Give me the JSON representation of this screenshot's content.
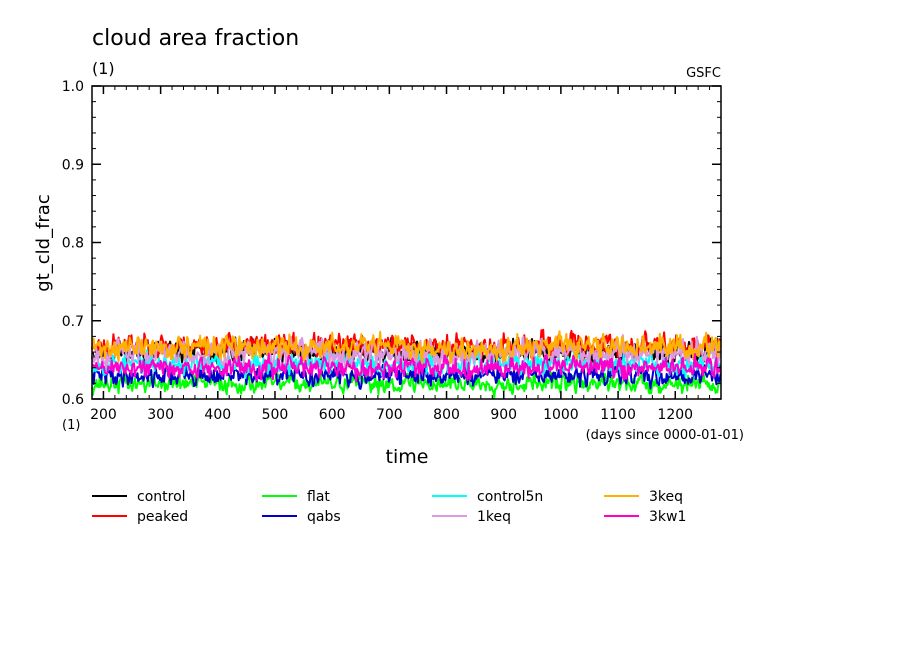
{
  "chart_data": {
    "type": "line",
    "title": "cloud area fraction",
    "subtitle": "(1)",
    "source_label": "GSFC",
    "xlabel": "time",
    "xunits": "(days since 0000-01-01)",
    "ylabel": "gt_cld_frac",
    "yunits": "(1)",
    "xlim": [
      180,
      1280
    ],
    "ylim": [
      0.6,
      1.0
    ],
    "xticks": [
      200,
      300,
      400,
      500,
      600,
      700,
      800,
      900,
      1000,
      1100,
      1200
    ],
    "yticks": [
      0.6,
      0.7,
      0.8,
      0.9,
      1.0
    ],
    "ytick_labels": [
      "0.6",
      "0.7",
      "0.8",
      "0.9",
      "1.0"
    ],
    "series": [
      {
        "name": "control",
        "color": "#000000",
        "mean": 0.66,
        "amp": 0.016,
        "seed": 11
      },
      {
        "name": "peaked",
        "color": "#ff0000",
        "mean": 0.668,
        "amp": 0.016,
        "seed": 23
      },
      {
        "name": "flat",
        "color": "#00ff00",
        "mean": 0.62,
        "amp": 0.013,
        "seed": 37
      },
      {
        "name": "qabs",
        "color": "#0000cc",
        "mean": 0.63,
        "amp": 0.013,
        "seed": 41
      },
      {
        "name": "control5n",
        "color": "#00ffff",
        "mean": 0.645,
        "amp": 0.014,
        "seed": 53
      },
      {
        "name": "1keq",
        "color": "#dd99dd",
        "mean": 0.66,
        "amp": 0.017,
        "seed": 67
      },
      {
        "name": "3keq",
        "color": "#ffb000",
        "mean": 0.666,
        "amp": 0.016,
        "seed": 71
      },
      {
        "name": "3kw1",
        "color": "#ff00cc",
        "mean": 0.64,
        "amp": 0.014,
        "seed": 89
      }
    ]
  }
}
